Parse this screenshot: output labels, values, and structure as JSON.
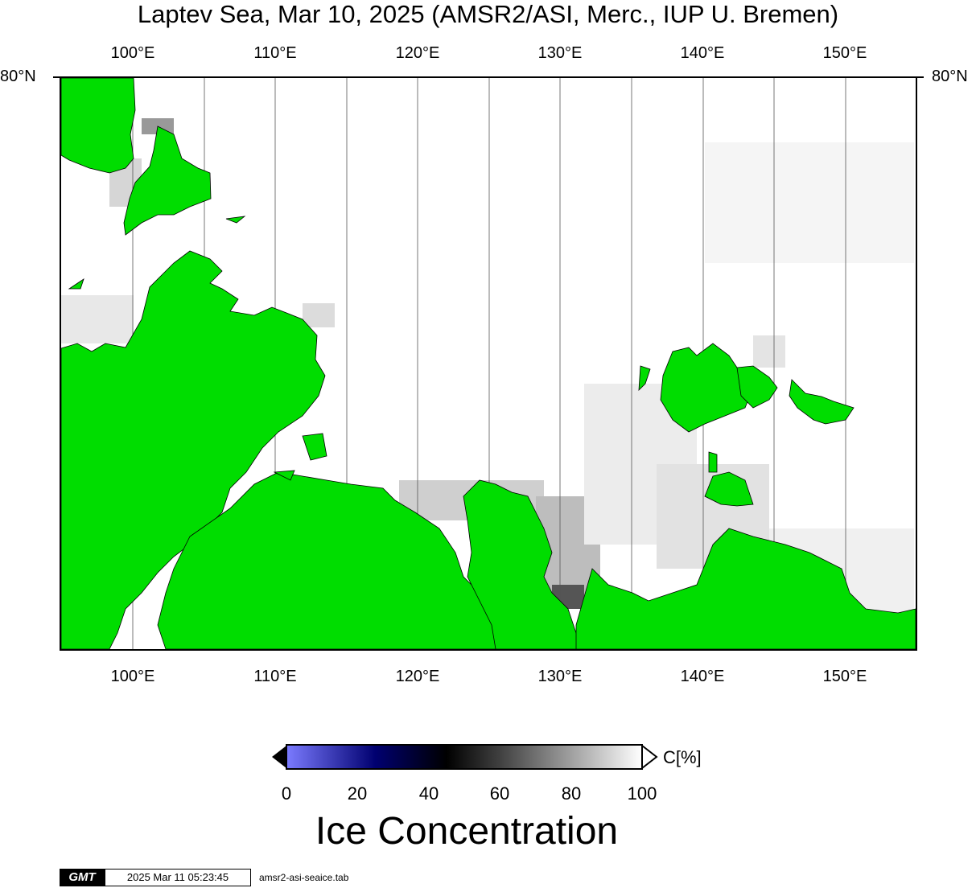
{
  "title": "Laptev Sea, Mar 10, 2025 (AMSR2/ASI, Merc., IUP U. Bremen)",
  "map": {
    "lon_ticks": [
      "100°E",
      "110°E",
      "120°E",
      "130°E",
      "140°E",
      "150°E"
    ],
    "lat_label": "80°N",
    "land_color": "#00dd00",
    "ocean_color": "#ffffff"
  },
  "colorbar": {
    "ticks": [
      "0",
      "20",
      "40",
      "60",
      "80",
      "100"
    ],
    "unit": "C[%]",
    "title": "Ice Concentration",
    "colors": [
      "#7b7bff",
      "#000070",
      "#000000",
      "#808080",
      "#ffffff"
    ]
  },
  "footer": {
    "logo": "GMT",
    "timestamp": "2025 Mar 11 05:23:45",
    "file": "amsr2-asi-seaice.tab"
  }
}
